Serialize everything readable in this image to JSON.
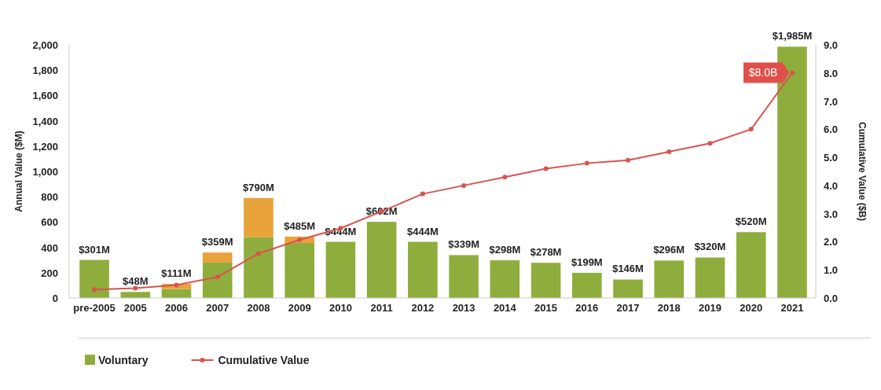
{
  "chart_data": {
    "type": "bar",
    "stacked": true,
    "xlabel": null,
    "ylabel": "Annual Value ($M)",
    "y2label": "Cumulative Value ($B)",
    "categories": [
      "pre-2005",
      "2005",
      "2006",
      "2007",
      "2008",
      "2009",
      "2010",
      "2011",
      "2012",
      "2013",
      "2014",
      "2015",
      "2016",
      "2017",
      "2018",
      "2019",
      "2020",
      "2021"
    ],
    "series": [
      {
        "name": "Voluntary",
        "color": "#8fad3c",
        "values": [
          301,
          48,
          71,
          280,
          481,
          435,
          444,
          602,
          444,
          339,
          298,
          278,
          199,
          146,
          296,
          320,
          520,
          1985
        ]
      },
      {
        "color": "#e8a33a",
        "values": [
          null,
          null,
          40,
          79,
          309,
          50,
          null,
          null,
          null,
          null,
          null,
          null,
          null,
          null,
          null,
          null,
          null,
          null
        ]
      },
      {
        "name": "Cumulative Value",
        "type": "line",
        "axis": "y2",
        "color": "#d9534f",
        "values": [
          0.3,
          0.35,
          0.46,
          0.75,
          1.58,
          2.07,
          2.48,
          3.08,
          3.7,
          4.0,
          4.3,
          4.6,
          4.79,
          4.9,
          5.2,
          5.5,
          6.0,
          8.0
        ]
      }
    ],
    "totals": [
      "$301M",
      "$48M",
      "$111M",
      "$359M",
      "$790M",
      "$485M",
      "$444M",
      "$602M",
      "$444M",
      "$339M",
      "$298M",
      "$278M",
      "$199M",
      "$146M",
      "$296M",
      "$320M",
      "$520M",
      "$1,985M"
    ],
    "annotations": [
      {
        "text": "$8.0B",
        "x": "2021",
        "y": 1780
      }
    ],
    "ylim": [
      0,
      2000
    ],
    "yticks": [
      0,
      200,
      400,
      600,
      800,
      {
        "value": 1000,
        "label": "1,000"
      },
      {
        "value": 1200,
        "label": "1,200"
      },
      {
        "value": 1400,
        "label": "1,400"
      },
      {
        "value": 1600,
        "label": "1,600"
      },
      {
        "value": 1800,
        "label": "1,800"
      },
      {
        "value": 2000,
        "label": "2,000"
      }
    ],
    "y2lim": [
      0,
      9
    ],
    "y2ticks": [
      {
        "value": 0,
        "label": "0.0"
      },
      {
        "value": 1,
        "label": "1.0"
      },
      {
        "value": 2,
        "label": "2.0"
      },
      {
        "value": 3,
        "label": "3.0"
      },
      {
        "value": 4,
        "label": "4.0"
      },
      {
        "value": 5,
        "label": "5.0"
      },
      {
        "value": 6,
        "label": "6.0"
      },
      {
        "value": 7,
        "label": "7.0"
      },
      {
        "value": 8,
        "label": "8.0"
      },
      {
        "value": 9,
        "label": "9.0"
      }
    ],
    "grid": false,
    "legend": "bottom",
    "marker": "circle",
    "line_style": "solid"
  }
}
